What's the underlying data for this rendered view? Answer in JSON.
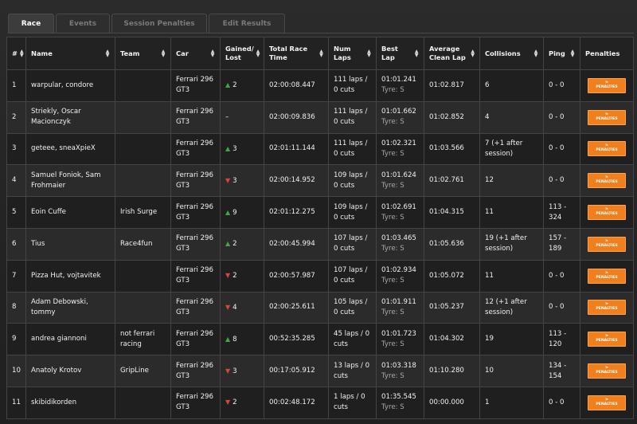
{
  "tabs": [
    "Race",
    "Events",
    "Session Penalties",
    "Edit Results"
  ],
  "columns": [
    "#",
    "Name",
    "Team",
    "Car",
    "Gained/ Lost",
    "Total Race Time",
    "Num Laps",
    "Best Lap",
    "Average Clean Lap",
    "Collisions",
    "Ping",
    "Penalties"
  ],
  "penalties_button_label": "PENALTIES",
  "colors": {
    "accent_orange": "#f07f1d",
    "gain_green": "#3aa946",
    "loss_red": "#e0403a"
  },
  "rows": [
    {
      "pos": "1",
      "name": "warpular, condore",
      "team": "",
      "car": "Ferrari 296 GT3",
      "dir": "up",
      "delta": "2",
      "time": "02:00:08.447",
      "laps": "111 laps / 0 cuts",
      "best": "01:01.241",
      "tyre": "Tyre: S",
      "avg": "01:02.817",
      "collisions": "6",
      "ping": "0 - 0"
    },
    {
      "pos": "2",
      "name": "Striekly, Oscar Macionczyk",
      "team": "",
      "car": "Ferrari 296 GT3",
      "dir": "none",
      "delta": "–",
      "time": "02:00:09.836",
      "laps": "111 laps / 0 cuts",
      "best": "01:01.662",
      "tyre": "Tyre: S",
      "avg": "01:02.852",
      "collisions": "4",
      "ping": "0 - 0"
    },
    {
      "pos": "3",
      "name": "geteee, sneaXpieX",
      "team": "",
      "car": "Ferrari 296 GT3",
      "dir": "up",
      "delta": "3",
      "time": "02:01:11.144",
      "laps": "111 laps / 0 cuts",
      "best": "01:02.321",
      "tyre": "Tyre: S",
      "avg": "01:03.566",
      "collisions": "7 (+1 after session)",
      "ping": "0 - 0"
    },
    {
      "pos": "4",
      "name": "Samuel Foniok, Sam Frohmaier",
      "team": "",
      "car": "Ferrari 296 GT3",
      "dir": "down",
      "delta": "3",
      "time": "02:00:14.952",
      "laps": "109 laps / 0 cuts",
      "best": "01:01.624",
      "tyre": "Tyre: S",
      "avg": "01:02.761",
      "collisions": "12",
      "ping": "0 - 0"
    },
    {
      "pos": "5",
      "name": "Eoin Cuffe",
      "team": "Irish Surge",
      "car": "Ferrari 296 GT3",
      "dir": "up",
      "delta": "9",
      "time": "02:01:12.275",
      "laps": "109 laps / 0 cuts",
      "best": "01:02.691",
      "tyre": "Tyre: S",
      "avg": "01:04.315",
      "collisions": "11",
      "ping": "113 - 324"
    },
    {
      "pos": "6",
      "name": "Tius",
      "team": "Race4fun",
      "car": "Ferrari 296 GT3",
      "dir": "up",
      "delta": "2",
      "time": "02:00:45.994",
      "laps": "107 laps / 0 cuts",
      "best": "01:03.465",
      "tyre": "Tyre: S",
      "avg": "01:05.636",
      "collisions": "19 (+1 after session)",
      "ping": "157 - 189"
    },
    {
      "pos": "7",
      "name": "Pizza Hut, vojtavitek",
      "team": "",
      "car": "Ferrari 296 GT3",
      "dir": "down",
      "delta": "2",
      "time": "02:00:57.987",
      "laps": "107 laps / 0 cuts",
      "best": "01:02.934",
      "tyre": "Tyre: S",
      "avg": "01:05.072",
      "collisions": "11",
      "ping": "0 - 0"
    },
    {
      "pos": "8",
      "name": "Adam Debowski, tommy",
      "team": "",
      "car": "Ferrari 296 GT3",
      "dir": "down",
      "delta": "4",
      "time": "02:00:25.611",
      "laps": "105 laps / 0 cuts",
      "best": "01:01.911",
      "tyre": "Tyre: S",
      "avg": "01:05.237",
      "collisions": "12 (+1 after session)",
      "ping": "0 - 0"
    },
    {
      "pos": "9",
      "name": "andrea giannoni",
      "team": "not ferrari racing",
      "car": "Ferrari 296 GT3",
      "dir": "up",
      "delta": "8",
      "time": "00:52:35.285",
      "laps": "45 laps / 0 cuts",
      "best": "01:01.723",
      "tyre": "Tyre: S",
      "avg": "01:04.302",
      "collisions": "19",
      "ping": "113 - 120"
    },
    {
      "pos": "10",
      "name": "Anatoly Krotov",
      "team": "GripLine",
      "car": "Ferrari 296 GT3",
      "dir": "down",
      "delta": "3",
      "time": "00:17:05.912",
      "laps": "13 laps / 0 cuts",
      "best": "01:03.318",
      "tyre": "Tyre: S",
      "avg": "01:10.280",
      "collisions": "10",
      "ping": "134 - 154"
    },
    {
      "pos": "11",
      "name": "skibidikorden",
      "team": "",
      "car": "Ferrari 296 GT3",
      "dir": "down",
      "delta": "2",
      "time": "00:02:48.172",
      "laps": "1 laps / 0 cuts",
      "best": "01:35.545",
      "tyre": "Tyre: S",
      "avg": "00:00.000",
      "collisions": "1",
      "ping": "0 - 0"
    }
  ]
}
